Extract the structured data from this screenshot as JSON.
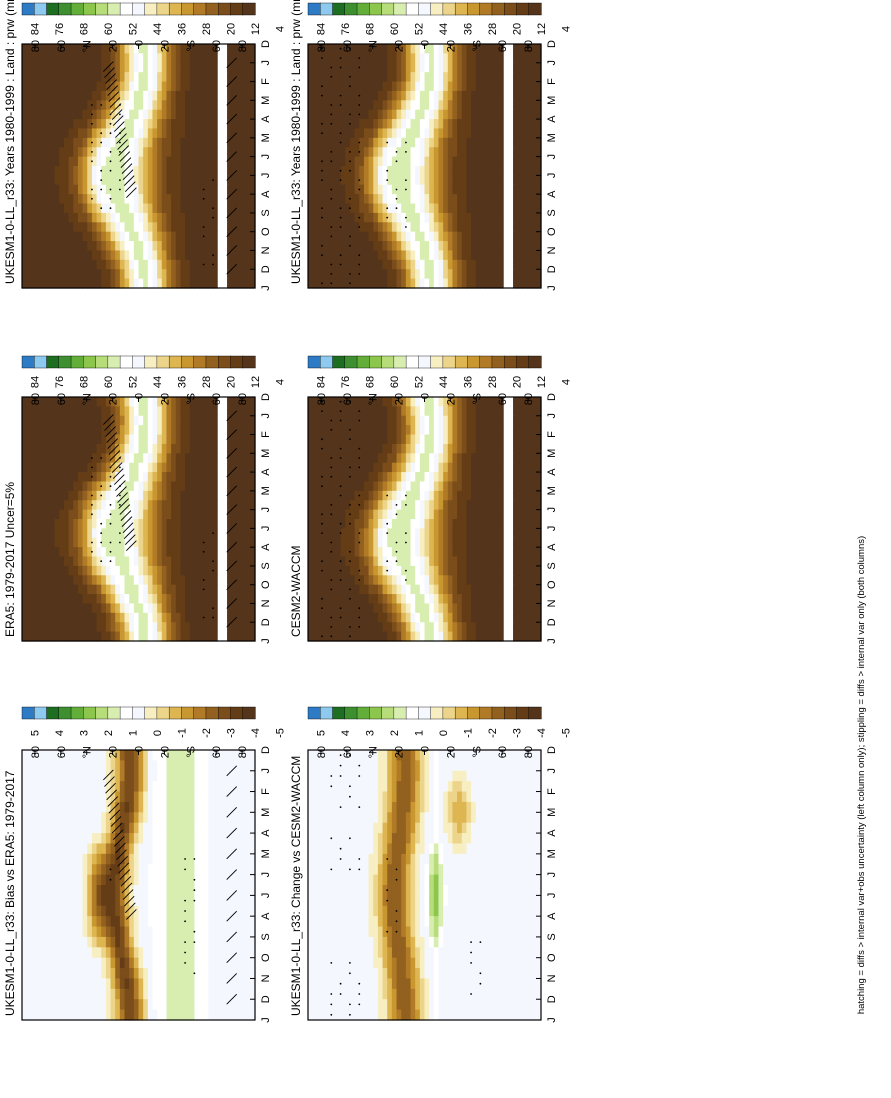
{
  "footnote": "hatching = diffs > internal var+obs uncertainty (left column only); stippling = diffs > internal var only (both columns)",
  "chart_data": [
    {
      "type": "heatmap",
      "id": "p1",
      "title": "UKESM1-0-LL_r33: Years 1980-1999 : Land : prw (mm)",
      "month_labels": [
        "D",
        "J",
        "F",
        "M",
        "A",
        "M",
        "J",
        "J",
        "A",
        "S",
        "O",
        "N",
        "D",
        "J"
      ],
      "lat_labels": [
        "80",
        "60",
        "°N",
        "20",
        "0",
        "20",
        "°S",
        "60",
        "80"
      ],
      "colorbar_labels": [
        "84",
        "76",
        "68",
        "60",
        "52",
        "44",
        "36",
        "28",
        "20",
        "12",
        "4"
      ],
      "colorbar_colors": [
        "#2c7bc4",
        "#8ec9ef",
        "#1e6e22",
        "#3d8f2f",
        "#63ad39",
        "#8cc64c",
        "#b6dd7a",
        "#d8eeb0",
        "#ffffff",
        "#f5f7fe",
        "#f7eec2",
        "#ecd58a",
        "#ddb551",
        "#c99730",
        "#b07a26",
        "#92611f",
        "#7a4d1b",
        "#643d16",
        "#54341a"
      ],
      "field": "abs",
      "season_shift": 0,
      "hatching": true,
      "stippling": "wet"
    },
    {
      "type": "heatmap",
      "id": "p2",
      "title": "UKESM1-0-LL_r33: Years 1980-1999 : Land : prw (mm)",
      "month_labels": [
        "D",
        "J",
        "F",
        "M",
        "A",
        "M",
        "J",
        "J",
        "A",
        "S",
        "O",
        "N",
        "D",
        "J"
      ],
      "lat_labels": [
        "80",
        "60",
        "°N",
        "20",
        "0",
        "20",
        "°S",
        "60",
        "80"
      ],
      "colorbar_labels": [
        "84",
        "76",
        "68",
        "60",
        "52",
        "44",
        "36",
        "28",
        "20",
        "12",
        "4"
      ],
      "colorbar_colors": [
        "#2c7bc4",
        "#8ec9ef",
        "#1e6e22",
        "#3d8f2f",
        "#63ad39",
        "#8cc64c",
        "#b6dd7a",
        "#d8eeb0",
        "#ffffff",
        "#f5f7fe",
        "#f7eec2",
        "#ecd58a",
        "#ddb551",
        "#c99730",
        "#b07a26",
        "#92611f",
        "#7a4d1b",
        "#643d16",
        "#54341a"
      ],
      "field": "abs",
      "season_shift": 0,
      "hatching": false,
      "stippling": "north"
    },
    {
      "type": "heatmap",
      "id": "p3",
      "title": "ERA5: 1979-2017 Uncer=5%",
      "month_labels": [
        "D",
        "J",
        "F",
        "M",
        "A",
        "M",
        "J",
        "J",
        "A",
        "S",
        "O",
        "N",
        "D",
        "J"
      ],
      "lat_labels": [
        "80",
        "60",
        "°N",
        "20",
        "0",
        "20",
        "°S",
        "60",
        "80"
      ],
      "colorbar_labels": [
        "84",
        "76",
        "68",
        "60",
        "52",
        "44",
        "36",
        "28",
        "20",
        "12",
        "4"
      ],
      "colorbar_colors": [
        "#2c7bc4",
        "#8ec9ef",
        "#1e6e22",
        "#3d8f2f",
        "#63ad39",
        "#8cc64c",
        "#b6dd7a",
        "#d8eeb0",
        "#ffffff",
        "#f5f7fe",
        "#f7eec2",
        "#ecd58a",
        "#ddb551",
        "#c99730",
        "#b07a26",
        "#92611f",
        "#7a4d1b",
        "#643d16",
        "#54341a"
      ],
      "field": "abs",
      "season_shift": 0.3,
      "hatching": true,
      "stippling": "wet"
    },
    {
      "type": "heatmap",
      "id": "p4",
      "title": "CESM2-WACCM",
      "month_labels": [
        "D",
        "J",
        "F",
        "M",
        "A",
        "M",
        "J",
        "J",
        "A",
        "S",
        "O",
        "N",
        "D",
        "J"
      ],
      "lat_labels": [
        "80",
        "60",
        "°N",
        "20",
        "0",
        "20",
        "°S",
        "60",
        "80"
      ],
      "colorbar_labels": [
        "84",
        "76",
        "68",
        "60",
        "52",
        "44",
        "36",
        "28",
        "20",
        "12",
        "4"
      ],
      "colorbar_colors": [
        "#2c7bc4",
        "#8ec9ef",
        "#1e6e22",
        "#3d8f2f",
        "#63ad39",
        "#8cc64c",
        "#b6dd7a",
        "#d8eeb0",
        "#ffffff",
        "#f5f7fe",
        "#f7eec2",
        "#ecd58a",
        "#ddb551",
        "#c99730",
        "#b07a26",
        "#92611f",
        "#7a4d1b",
        "#643d16",
        "#54341a"
      ],
      "field": "abs",
      "season_shift": 0.6,
      "hatching": false,
      "stippling": "north"
    },
    {
      "type": "heatmap",
      "id": "p5",
      "title": "UKESM1-0-LL_r33: Bias vs ERA5: 1979-2017",
      "month_labels": [
        "D",
        "J",
        "F",
        "M",
        "A",
        "M",
        "J",
        "J",
        "A",
        "S",
        "O",
        "N",
        "D",
        "J"
      ],
      "lat_labels": [
        "80",
        "60",
        "°N",
        "20",
        "0",
        "20",
        "°S",
        "60",
        "80"
      ],
      "colorbar_labels": [
        "5",
        "4",
        "3",
        "2",
        "1",
        "0",
        "-1",
        "-2",
        "-3",
        "-4",
        "-5"
      ],
      "colorbar_colors": [
        "#2c7bc4",
        "#8ec9ef",
        "#1e6e22",
        "#3d8f2f",
        "#63ad39",
        "#8cc64c",
        "#b6dd7a",
        "#d8eeb0",
        "#ffffff",
        "#f5f7fe",
        "#f7eec2",
        "#ecd58a",
        "#ddb551",
        "#c99730",
        "#b07a26",
        "#92611f",
        "#7a4d1b",
        "#643d16",
        "#54341a"
      ],
      "field": "bias",
      "season_shift": 0,
      "hatching": true,
      "stippling": "south"
    },
    {
      "type": "heatmap",
      "id": "p6",
      "title": "UKESM1-0-LL_r33: Change vs CESM2-WACCM",
      "month_labels": [
        "D",
        "J",
        "F",
        "M",
        "A",
        "M",
        "J",
        "J",
        "A",
        "S",
        "O",
        "N",
        "D",
        "J"
      ],
      "lat_labels": [
        "80",
        "60",
        "°N",
        "20",
        "0",
        "20",
        "°S",
        "60",
        "80"
      ],
      "colorbar_labels": [
        "5",
        "4",
        "3",
        "2",
        "1",
        "0",
        "-1",
        "-2",
        "-3",
        "-4",
        "-5"
      ],
      "colorbar_colors": [
        "#2c7bc4",
        "#8ec9ef",
        "#1e6e22",
        "#3d8f2f",
        "#63ad39",
        "#8cc64c",
        "#b6dd7a",
        "#d8eeb0",
        "#ffffff",
        "#f5f7fe",
        "#f7eec2",
        "#ecd58a",
        "#ddb551",
        "#c99730",
        "#b07a26",
        "#92611f",
        "#7a4d1b",
        "#643d16",
        "#54341a"
      ],
      "field": "change",
      "season_shift": 0,
      "hatching": false,
      "stippling": "mixed"
    }
  ]
}
